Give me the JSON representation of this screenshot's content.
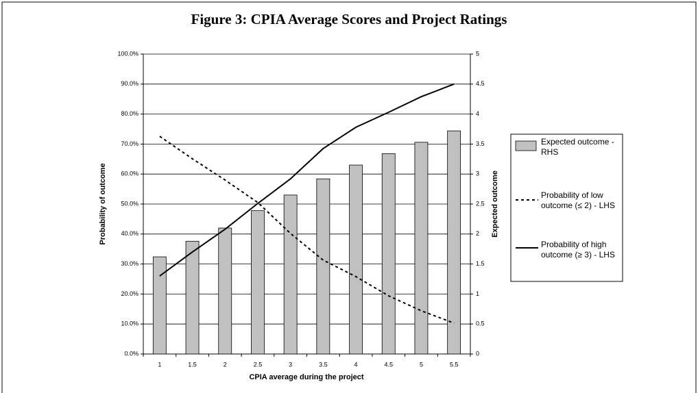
{
  "chart_data": {
    "type": "combo",
    "title": "Figure 3: CPIA Average Scores and Project Ratings",
    "x_label": "CPIA average during the project",
    "y_label": "Probability of outcome",
    "y2_label": "Expected outcome",
    "categories": [
      "1",
      "1.5",
      "2",
      "2.5",
      "3",
      "3.5",
      "4",
      "4.5",
      "5",
      "5.5"
    ],
    "ylim": [
      0,
      100
    ],
    "yticks": [
      {
        "value": 0,
        "label": "0.0%"
      },
      {
        "value": 10,
        "label": "10.0%"
      },
      {
        "value": 20,
        "label": "20.0%"
      },
      {
        "value": 30,
        "label": "30.0%"
      },
      {
        "value": 40,
        "label": "40.0%"
      },
      {
        "value": 50,
        "label": "50.0%"
      },
      {
        "value": 60,
        "label": "60.0%"
      },
      {
        "value": 70,
        "label": "70.0%"
      },
      {
        "value": 80,
        "label": "80.0%"
      },
      {
        "value": 90,
        "label": "90.0%"
      },
      {
        "value": 100,
        "label": "100.0%"
      }
    ],
    "y2lim": [
      0,
      5
    ],
    "y2ticks": [
      0,
      0.5,
      1,
      1.5,
      2,
      2.5,
      3,
      3.5,
      4,
      4.5,
      5
    ],
    "grid": true,
    "legend": "right",
    "series": [
      {
        "name": "Expected outcome - RHS",
        "type": "bar",
        "axis": "y2",
        "color": "#c0c0c0",
        "values": [
          1.62,
          1.88,
          2.1,
          2.39,
          2.65,
          2.92,
          3.15,
          3.34,
          3.53,
          3.72
        ]
      },
      {
        "name": "Probability of low outcome (≤ 2) - LHS",
        "type": "line",
        "dashed": true,
        "color": "#000000",
        "values": [
          72.6,
          65.1,
          58.0,
          50.5,
          40.2,
          31.3,
          25.8,
          19.4,
          14.4,
          10.3
        ]
      },
      {
        "name": "Probability of high outcome (≥ 3) - LHS",
        "type": "line",
        "dashed": false,
        "color": "#000000",
        "values": [
          26.0,
          34.0,
          41.6,
          50.2,
          58.4,
          68.5,
          75.6,
          80.6,
          85.8,
          90.0
        ]
      }
    ]
  }
}
